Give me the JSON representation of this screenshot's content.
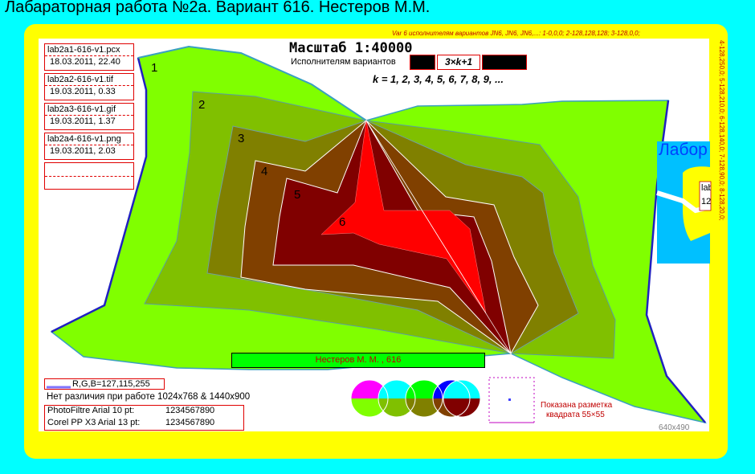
{
  "title": "Лабараторная работа №2а. Вариант 616. Нестеров М.М.",
  "top_legend": "Var 6 исполнителям вариантов JN6, JN6, JN6,...: 1-0,0,0; 2-128,128,128; 3-128,0,0;",
  "right_legend": "4-128,250,0; 5-128,210,0; 6-128,140,0; 7-128,90,0; 8-128,20,0;",
  "scale_label": "Масштаб 1:40000",
  "variants_label": "Исполнителям вариантов",
  "formula": "3×k+1",
  "k_values": "k = 1, 2, 3, 4, 5, 6, 7, 8, 9, ...",
  "files": [
    {
      "name": "lab2a1-616-v1.pcx",
      "date": "18.03.2011, 22.40"
    },
    {
      "name": "lab2a2-616-v1.tif",
      "date": "19.03.2011, 0.33"
    },
    {
      "name": "lab2a3-616-v1.gif",
      "date": "19.03.2011, 1.37"
    },
    {
      "name": "lab2a4-616-v1.png",
      "date": "19.03.2011, 2.03"
    }
  ],
  "region_labels": [
    "1",
    "2",
    "3",
    "4",
    "5",
    "6"
  ],
  "region_colors": [
    "#80ff00",
    "#80c000",
    "#808000",
    "#804000",
    "#800000",
    "#ff0000"
  ],
  "author_bar": "Нестеров М. М.   , 616",
  "rgb_label": "R,G,B=127,115,255",
  "no_diff_text": "Нет различия при работе 1024x768 & 1440x900",
  "font_rows": [
    {
      "app": "PhotoFiltre",
      "font": "Arial 10 pt:",
      "digits": "1234567890"
    },
    {
      "app": "Corel PP X3",
      "font": "Arial 13 pt:",
      "digits": "1234567890"
    }
  ],
  "grid_caption_line1": "Показана разметка",
  "grid_caption_line2": "квадрата 55×55",
  "resolution_label": "640x490",
  "mini_thumb_text": "Лабор",
  "mini_thumb_box_line1": "lab",
  "mini_thumb_box_line2": "12"
}
